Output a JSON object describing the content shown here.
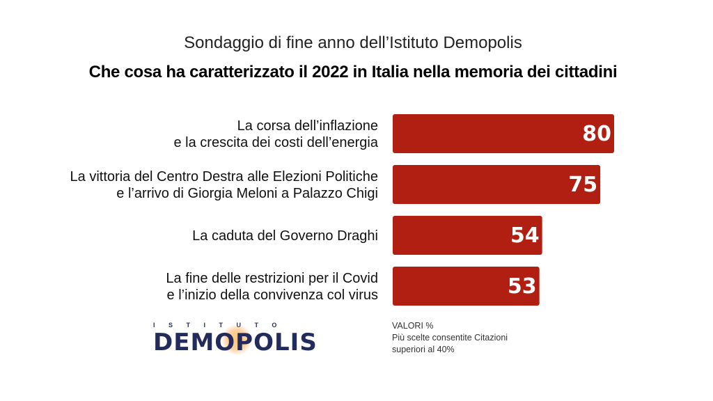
{
  "header": {
    "subtitle": "Sondaggio di fine anno dell’Istituto Demopolis",
    "title": "Che cosa ha caratterizzato il 2022 in Italia nella memoria dei cittadini"
  },
  "chart_data": {
    "type": "bar",
    "orientation": "horizontal",
    "title": "Che cosa ha caratterizzato il 2022 in Italia nella memoria dei cittadini",
    "categories": [
      [
        "La corsa dell’inflazione",
        "e la crescita dei costi dell’energia"
      ],
      [
        "La vittoria del Centro Destra alle Elezioni Politiche",
        "e l’arrivo di Giorgia Meloni a Palazzo Chigi"
      ],
      [
        "La caduta del Governo Draghi"
      ],
      [
        "La fine delle restrizioni per il Covid",
        "e l’inizio della convivenza col virus"
      ]
    ],
    "values": [
      80,
      75,
      54,
      53
    ],
    "bar_color": "#b01f12",
    "grid": false
  },
  "note": {
    "line1": "VALORI %",
    "line2": "Più scelte consentite Citazioni",
    "line3": "superiori al 40%"
  },
  "logo": {
    "top": "ISTITUTO",
    "main": "DEMOPOLIS"
  }
}
